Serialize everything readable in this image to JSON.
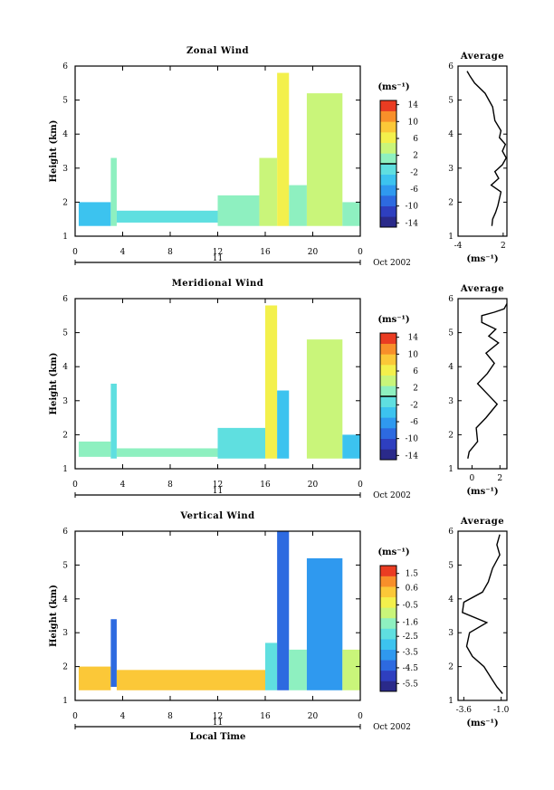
{
  "chart_data": [
    {
      "type": "heatmap",
      "title": "Zonal Wind",
      "ylabel": "Height (km)",
      "xlabel": "",
      "xlim": [
        0,
        24
      ],
      "ylim": [
        1,
        6
      ],
      "xticks": [
        "0",
        "4",
        "8",
        "12",
        "16",
        "20",
        "0"
      ],
      "yticks": [
        "1",
        "2",
        "3",
        "4",
        "5",
        "6"
      ],
      "date_day": "11",
      "date_label": "Oct 2002",
      "colorbar": {
        "unit": "(ms⁻¹)",
        "min": -15,
        "max": 15,
        "tick_labels": [
          "14",
          "10",
          "6",
          "2",
          "-2",
          "-6",
          "-10",
          "-14"
        ],
        "tick_values": [
          14,
          10,
          6,
          2,
          -2,
          -6,
          -10,
          -14
        ],
        "zero_line": 0
      },
      "regions": [
        {
          "x0": 0.3,
          "x1": 3.0,
          "y0": 1.3,
          "y1": 2.0,
          "value": -3
        },
        {
          "x0": 3.0,
          "x1": 3.5,
          "y0": 1.3,
          "y1": 3.3,
          "value": 1
        },
        {
          "x0": 3.5,
          "x1": 12.0,
          "y0": 1.4,
          "y1": 1.75,
          "value": -2
        },
        {
          "x0": 12.0,
          "x1": 15.5,
          "y0": 1.3,
          "y1": 2.2,
          "value": 1
        },
        {
          "x0": 15.5,
          "x1": 17.0,
          "y0": 1.3,
          "y1": 3.3,
          "value": 3
        },
        {
          "x0": 17.0,
          "x1": 18.0,
          "y0": 1.3,
          "y1": 5.8,
          "value": 5
        },
        {
          "x0": 18.0,
          "x1": 19.5,
          "y0": 1.3,
          "y1": 2.5,
          "value": 1
        },
        {
          "x0": 19.5,
          "x1": 22.5,
          "y0": 1.3,
          "y1": 5.2,
          "value": 4
        },
        {
          "x0": 22.5,
          "x1": 24.0,
          "y0": 1.3,
          "y1": 2.0,
          "value": 0
        }
      ],
      "profile": {
        "title": "Average",
        "xlim": [
          -4,
          2.5
        ],
        "xticks": [
          "-4",
          "2"
        ],
        "xtick_values": [
          -4,
          2
        ],
        "xlabel": "(ms⁻¹)",
        "points": [
          [
            0.5,
            1.3
          ],
          [
            0.6,
            1.5
          ],
          [
            1.0,
            1.7
          ],
          [
            1.3,
            1.9
          ],
          [
            1.5,
            2.1
          ],
          [
            1.7,
            2.3
          ],
          [
            0.4,
            2.5
          ],
          [
            1.4,
            2.7
          ],
          [
            0.9,
            2.9
          ],
          [
            1.9,
            3.1
          ],
          [
            2.4,
            3.3
          ],
          [
            1.9,
            3.5
          ],
          [
            2.3,
            3.7
          ],
          [
            1.5,
            3.9
          ],
          [
            1.7,
            4.1
          ],
          [
            0.9,
            4.4
          ],
          [
            0.6,
            4.8
          ],
          [
            -0.4,
            5.2
          ],
          [
            -1.8,
            5.5
          ],
          [
            -2.4,
            5.7
          ],
          [
            -2.8,
            5.85
          ]
        ]
      }
    },
    {
      "type": "heatmap",
      "title": "Meridional Wind",
      "ylabel": "Height (km)",
      "xlabel": "",
      "xlim": [
        0,
        24
      ],
      "ylim": [
        1,
        6
      ],
      "xticks": [
        "0",
        "4",
        "8",
        "12",
        "16",
        "20",
        "0"
      ],
      "yticks": [
        "1",
        "2",
        "3",
        "4",
        "5",
        "6"
      ],
      "date_day": "11",
      "date_label": "Oct 2002",
      "colorbar": {
        "unit": "(ms⁻¹)",
        "min": -15,
        "max": 15,
        "tick_labels": [
          "14",
          "10",
          "6",
          "2",
          "-2",
          "-6",
          "-10",
          "-14"
        ],
        "tick_values": [
          14,
          10,
          6,
          2,
          -2,
          -6,
          -10,
          -14
        ],
        "zero_line": 0
      },
      "regions": [
        {
          "x0": 0.3,
          "x1": 3.0,
          "y0": 1.35,
          "y1": 1.8,
          "value": 0
        },
        {
          "x0": 3.0,
          "x1": 3.5,
          "y0": 1.3,
          "y1": 3.5,
          "value": -1
        },
        {
          "x0": 3.5,
          "x1": 12.0,
          "y0": 1.35,
          "y1": 1.6,
          "value": 0
        },
        {
          "x0": 12.0,
          "x1": 16.0,
          "y0": 1.3,
          "y1": 2.2,
          "value": -2
        },
        {
          "x0": 16.0,
          "x1": 17.0,
          "y0": 1.3,
          "y1": 5.8,
          "value": 6
        },
        {
          "x0": 17.0,
          "x1": 18.0,
          "y0": 1.3,
          "y1": 3.3,
          "value": -5
        },
        {
          "x0": 19.5,
          "x1": 22.5,
          "y0": 1.3,
          "y1": 4.8,
          "value": 3
        },
        {
          "x0": 22.5,
          "x1": 24.0,
          "y0": 1.3,
          "y1": 2.0,
          "value": -3
        }
      ],
      "profile": {
        "title": "Average",
        "xlim": [
          -1,
          2.5
        ],
        "xticks": [
          "0",
          "2"
        ],
        "xtick_values": [
          0,
          2
        ],
        "xlabel": "(ms⁻¹)",
        "points": [
          [
            -0.3,
            1.3
          ],
          [
            -0.2,
            1.5
          ],
          [
            0.4,
            1.8
          ],
          [
            0.3,
            2.2
          ],
          [
            1.0,
            2.5
          ],
          [
            1.8,
            2.9
          ],
          [
            1.1,
            3.2
          ],
          [
            0.4,
            3.5
          ],
          [
            1.1,
            3.8
          ],
          [
            1.6,
            4.1
          ],
          [
            1.0,
            4.4
          ],
          [
            1.9,
            4.7
          ],
          [
            1.2,
            4.9
          ],
          [
            1.7,
            5.1
          ],
          [
            0.7,
            5.3
          ],
          [
            0.7,
            5.5
          ],
          [
            1.6,
            5.6
          ],
          [
            2.3,
            5.7
          ],
          [
            2.5,
            5.85
          ]
        ]
      }
    },
    {
      "type": "heatmap",
      "title": "Vertical Wind",
      "ylabel": "Height (km)",
      "xlabel": "Local Time",
      "xlim": [
        0,
        24
      ],
      "ylim": [
        1,
        6
      ],
      "xticks": [
        "0",
        "4",
        "8",
        "12",
        "16",
        "20",
        "0"
      ],
      "yticks": [
        "1",
        "2",
        "3",
        "4",
        "5",
        "6"
      ],
      "date_day": "11",
      "date_label": "Oct 2002",
      "colorbar": {
        "unit": "(ms⁻¹)",
        "min": -6.0,
        "max": 2.0,
        "tick_labels": [
          "1.5",
          "0.6",
          "-0.5",
          "-1.6",
          "-2.5",
          "-3.5",
          "-4.5",
          "-5.5"
        ],
        "tick_values": [
          1.5,
          0.6,
          -0.5,
          -1.6,
          -2.5,
          -3.5,
          -4.5,
          -5.5
        ]
      },
      "regions": [
        {
          "x0": 0.3,
          "x1": 3.0,
          "y0": 1.3,
          "y1": 2.0,
          "value": 0.3
        },
        {
          "x0": 3.0,
          "x1": 3.5,
          "y0": 1.4,
          "y1": 3.4,
          "value": -4.5
        },
        {
          "x0": 3.5,
          "x1": 16.0,
          "y0": 1.3,
          "y1": 1.9,
          "value": 0.3
        },
        {
          "x0": 16.0,
          "x1": 17.0,
          "y0": 1.3,
          "y1": 2.7,
          "value": -2.5
        },
        {
          "x0": 17.0,
          "x1": 18.0,
          "y0": 1.3,
          "y1": 6.0,
          "value": -4.5
        },
        {
          "x0": 18.0,
          "x1": 19.5,
          "y0": 1.3,
          "y1": 2.5,
          "value": -1.6
        },
        {
          "x0": 19.5,
          "x1": 22.5,
          "y0": 1.3,
          "y1": 5.2,
          "value": -4.0
        },
        {
          "x0": 22.5,
          "x1": 24.0,
          "y0": 1.3,
          "y1": 2.5,
          "value": -1.0
        }
      ],
      "profile": {
        "title": "Average",
        "xlim": [
          -4.0,
          -0.6
        ],
        "xticks": [
          "-3.6",
          "-1.0"
        ],
        "xtick_values": [
          -3.6,
          -1.0
        ],
        "xlabel": "(ms⁻¹)",
        "points": [
          [
            -0.9,
            1.2
          ],
          [
            -1.3,
            1.4
          ],
          [
            -1.6,
            1.6
          ],
          [
            -2.2,
            2.0
          ],
          [
            -3.0,
            2.3
          ],
          [
            -3.4,
            2.6
          ],
          [
            -3.2,
            3.0
          ],
          [
            -2.0,
            3.3
          ],
          [
            -3.7,
            3.6
          ],
          [
            -3.6,
            3.9
          ],
          [
            -2.3,
            4.2
          ],
          [
            -1.9,
            4.5
          ],
          [
            -1.6,
            4.9
          ],
          [
            -1.1,
            5.3
          ],
          [
            -1.3,
            5.6
          ],
          [
            -1.1,
            5.9
          ]
        ]
      }
    }
  ]
}
